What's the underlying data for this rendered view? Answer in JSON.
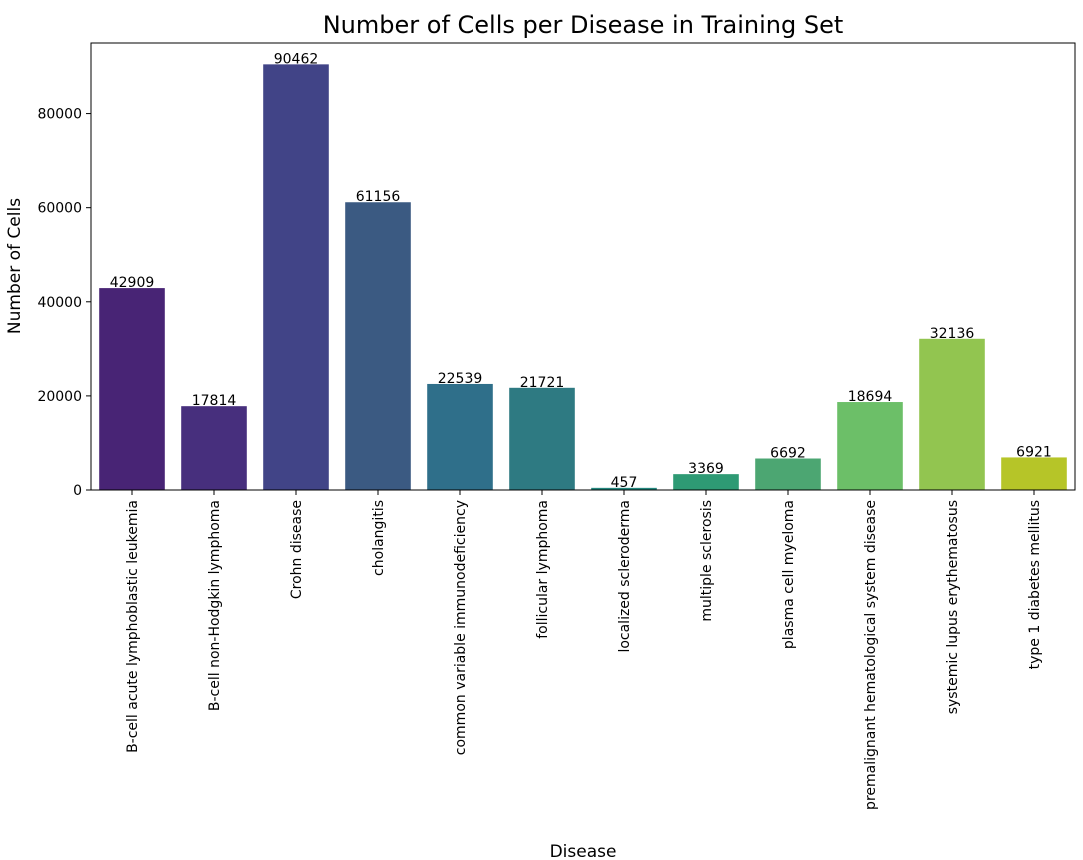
{
  "chart_data": {
    "type": "bar",
    "title": "Number of Cells per Disease in Training Set",
    "xlabel": "Disease",
    "ylabel": "Number of Cells",
    "ylim": [
      0,
      95000
    ],
    "yticks": [
      0,
      20000,
      40000,
      60000,
      80000
    ],
    "grid": false,
    "legend": "none",
    "categories": [
      "B-cell acute lymphoblastic leukemia",
      "B-cell non-Hodgkin lymphoma",
      "Crohn disease",
      "cholangitis",
      "common variable immunodeficiency",
      "follicular lymphoma",
      "localized scleroderma",
      "multiple sclerosis",
      "plasma cell myeloma",
      "premalignant hematological system disease",
      "systemic lupus erythematosus",
      "type 1 diabetes mellitus"
    ],
    "values": [
      42909,
      17814,
      90462,
      61156,
      22539,
      21721,
      457,
      3369,
      6692,
      18694,
      32136,
      6921
    ],
    "colors": [
      "#482475",
      "#472f7d",
      "#414487",
      "#3b5a82",
      "#2f6f8a",
      "#2e7a82",
      "#24877e",
      "#2e9a74",
      "#4ca672",
      "#6cbf68",
      "#92c550",
      "#b6c528"
    ]
  }
}
